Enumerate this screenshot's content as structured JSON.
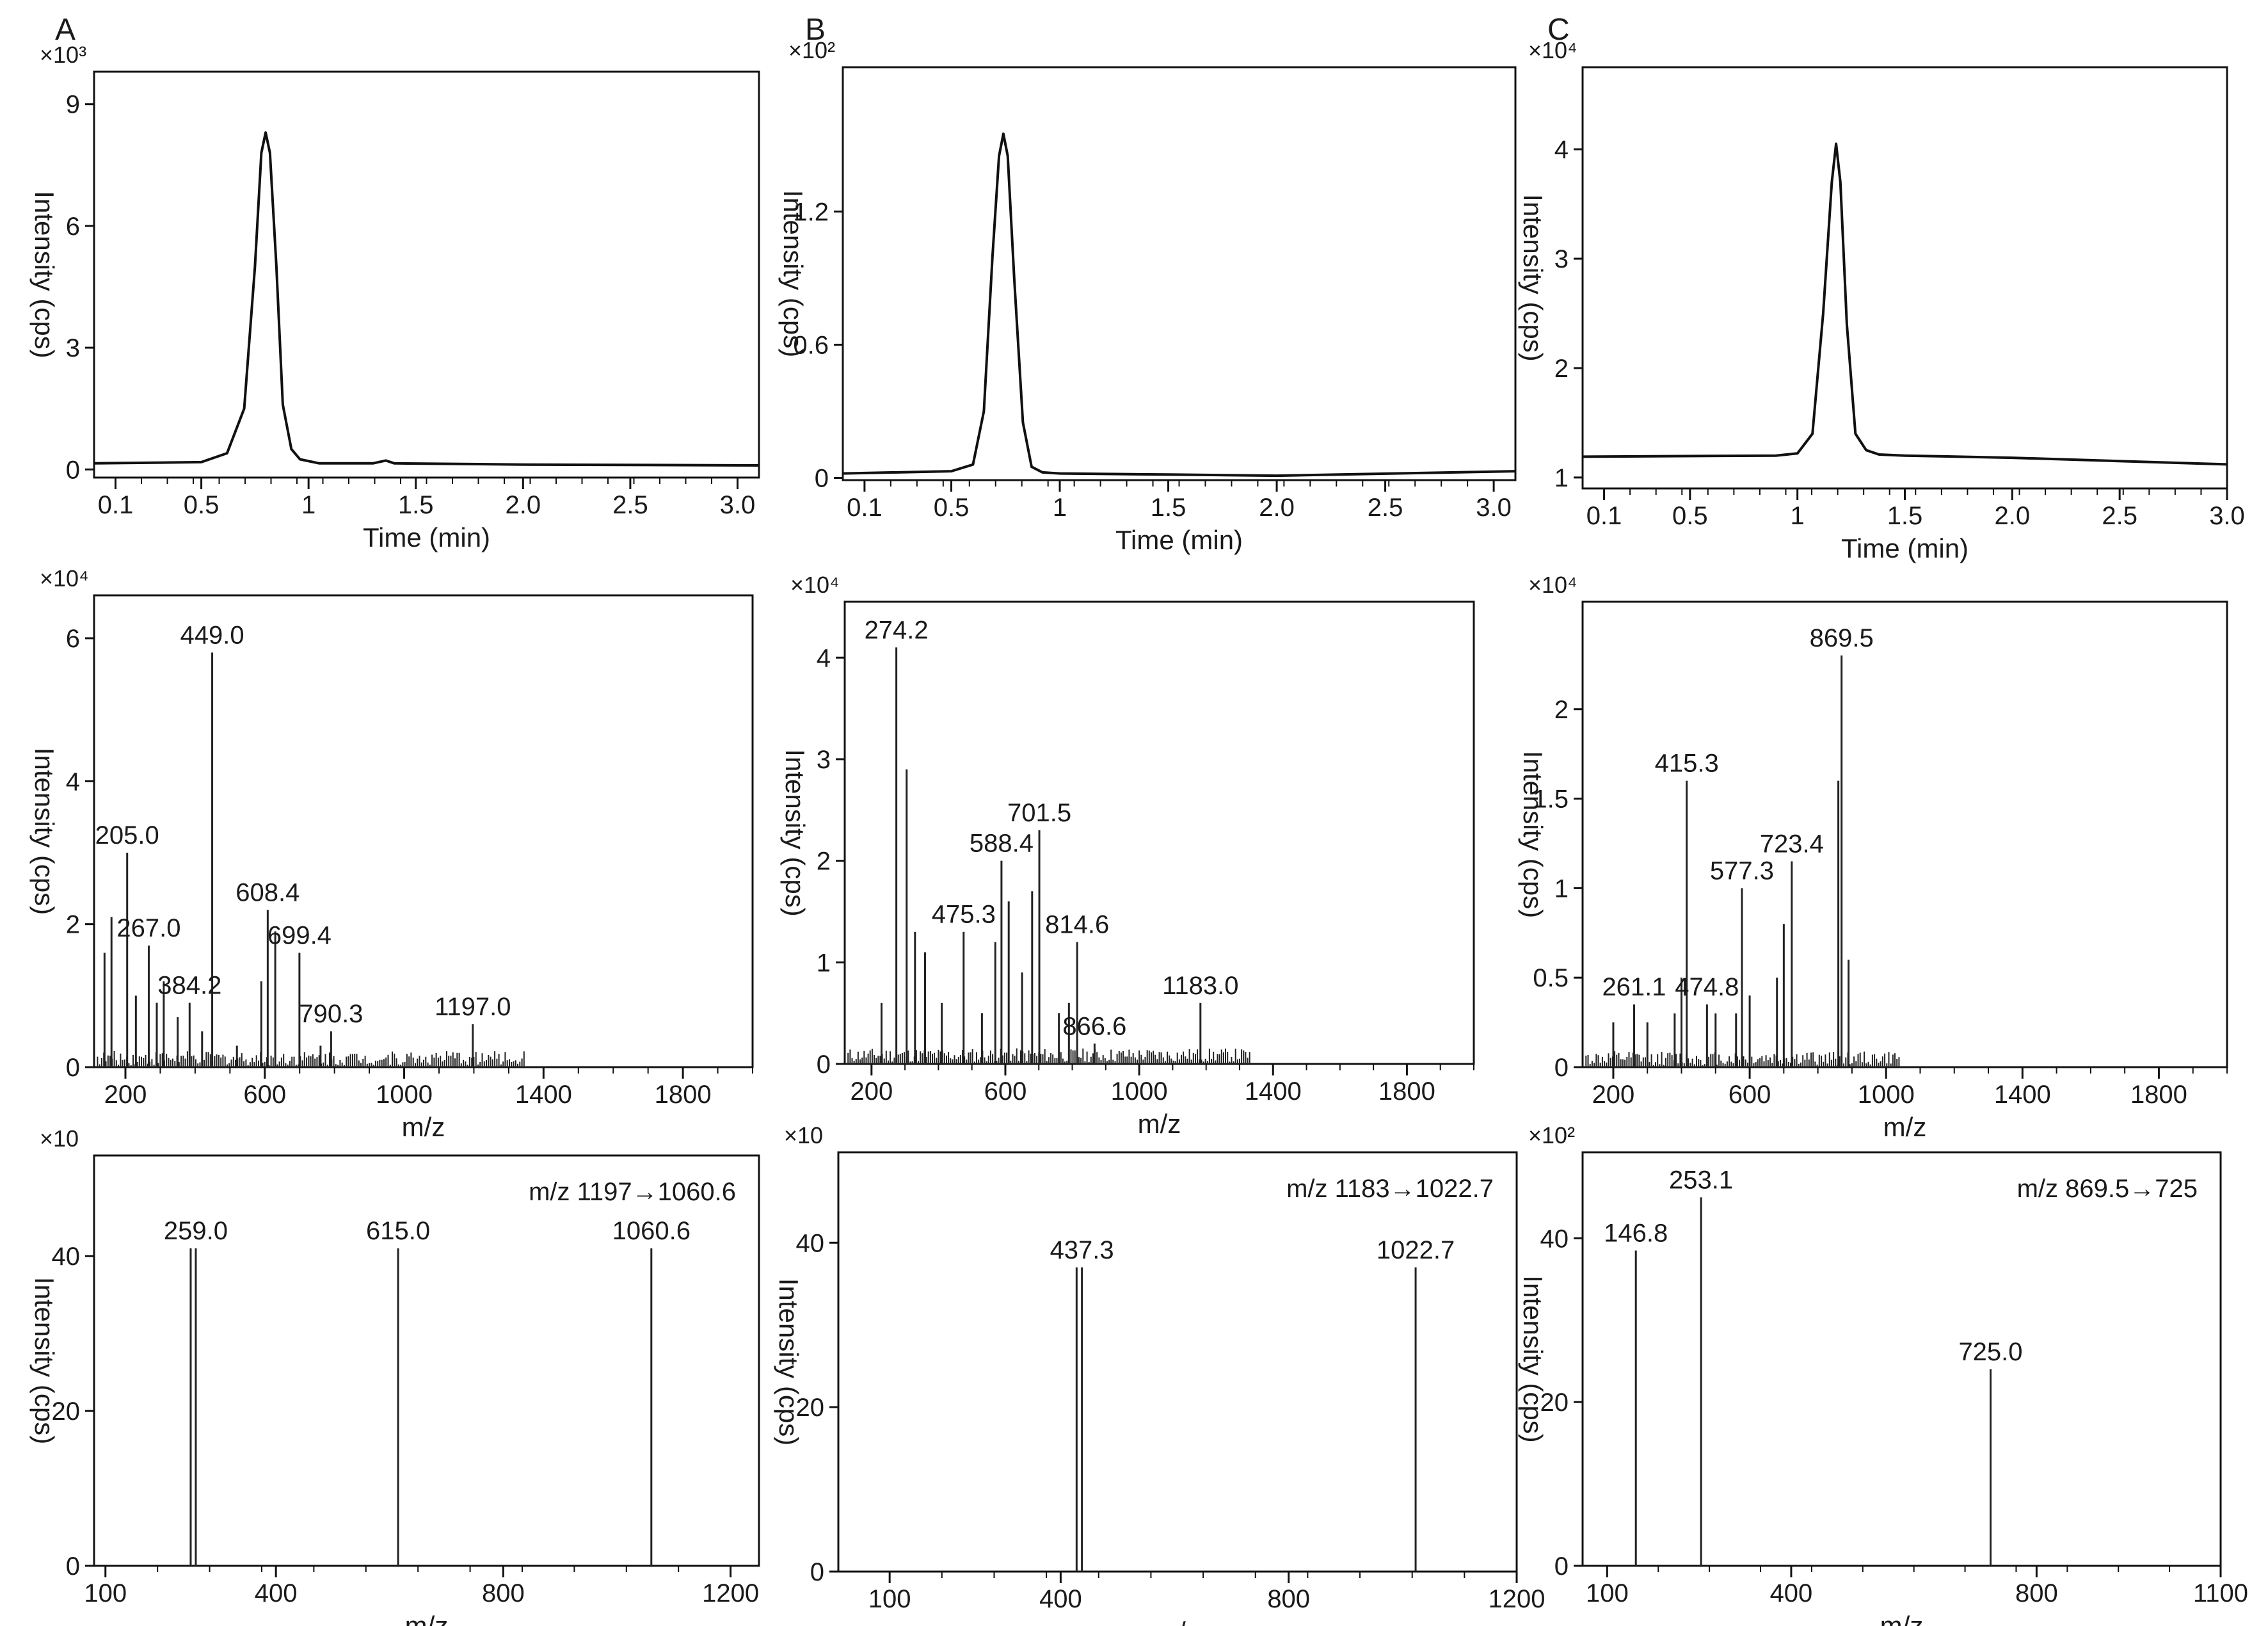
{
  "panel_letters": [
    "A",
    "B",
    "C"
  ],
  "chart_data": [
    {
      "id": "A-chromatogram",
      "type": "line",
      "panel": "A",
      "multiplier": "×10³",
      "xlabel": "Time (min)",
      "ylabel": "Intensity (cps)",
      "xlim": [
        0,
        3.1
      ],
      "ylim": [
        -0.2,
        9.8
      ],
      "x_ticks": [
        {
          "v": 0.1,
          "label": "0.1"
        },
        {
          "v": 0.5,
          "label": "0.5"
        },
        {
          "v": 1.0,
          "label": "1"
        },
        {
          "v": 1.5,
          "label": "1.5"
        },
        {
          "v": 2.0,
          "label": "2.0"
        },
        {
          "v": 2.5,
          "label": "2.5"
        },
        {
          "v": 3.0,
          "label": "3.0"
        }
      ],
      "y_ticks": [
        {
          "v": 0,
          "label": "0"
        },
        {
          "v": 3,
          "label": "3"
        },
        {
          "v": 6,
          "label": "6"
        },
        {
          "v": 9,
          "label": "9"
        }
      ],
      "series": [
        {
          "x": [
            0,
            0.5,
            0.62,
            0.7,
            0.75,
            0.78,
            0.8,
            0.82,
            0.85,
            0.88,
            0.92,
            0.96,
            1.05,
            1.3,
            1.36,
            1.4,
            2.0,
            3.1
          ],
          "y": [
            0.15,
            0.18,
            0.4,
            1.5,
            5.0,
            7.8,
            8.3,
            7.8,
            5.0,
            1.6,
            0.5,
            0.25,
            0.15,
            0.15,
            0.22,
            0.15,
            0.12,
            0.1
          ]
        }
      ]
    },
    {
      "id": "B-chromatogram",
      "type": "line",
      "panel": "B",
      "multiplier": "×10²",
      "xlabel": "Time (min)",
      "ylabel": "Intensity (cps)",
      "xlim": [
        0,
        3.1
      ],
      "ylim": [
        -0.01,
        1.85
      ],
      "x_ticks": [
        {
          "v": 0.1,
          "label": "0.1"
        },
        {
          "v": 0.5,
          "label": "0.5"
        },
        {
          "v": 1.0,
          "label": "1"
        },
        {
          "v": 1.5,
          "label": "1.5"
        },
        {
          "v": 2.0,
          "label": "2.0"
        },
        {
          "v": 2.5,
          "label": "2.5"
        },
        {
          "v": 3.0,
          "label": "3.0"
        }
      ],
      "y_ticks": [
        {
          "v": 0,
          "label": "0"
        },
        {
          "v": 0.6,
          "label": "0.6"
        },
        {
          "v": 1.2,
          "label": "1.2"
        }
      ],
      "series": [
        {
          "x": [
            0,
            0.5,
            0.6,
            0.65,
            0.69,
            0.72,
            0.74,
            0.76,
            0.79,
            0.83,
            0.87,
            0.92,
            1.0,
            1.5,
            2.0,
            3.1
          ],
          "y": [
            0.02,
            0.03,
            0.06,
            0.3,
            1.0,
            1.45,
            1.55,
            1.45,
            0.9,
            0.25,
            0.05,
            0.025,
            0.02,
            0.015,
            0.01,
            0.03
          ]
        }
      ]
    },
    {
      "id": "C-chromatogram",
      "type": "line",
      "panel": "C",
      "multiplier": "×10⁴",
      "xlabel": "Time (min)",
      "ylabel": "Intensity (cps)",
      "xlim": [
        0,
        3.0
      ],
      "ylim": [
        0.9,
        4.75
      ],
      "x_ticks": [
        {
          "v": 0.1,
          "label": "0.1"
        },
        {
          "v": 0.5,
          "label": "0.5"
        },
        {
          "v": 1.0,
          "label": "1"
        },
        {
          "v": 1.5,
          "label": "1.5"
        },
        {
          "v": 2.0,
          "label": "2.0"
        },
        {
          "v": 2.5,
          "label": "2.5"
        },
        {
          "v": 3.0,
          "label": "3.0"
        }
      ],
      "y_ticks": [
        {
          "v": 1,
          "label": "1"
        },
        {
          "v": 2,
          "label": "2"
        },
        {
          "v": 3,
          "label": "3"
        },
        {
          "v": 4,
          "label": "4"
        }
      ],
      "series": [
        {
          "x": [
            0,
            0.9,
            1.0,
            1.07,
            1.12,
            1.16,
            1.18,
            1.2,
            1.23,
            1.27,
            1.32,
            1.38,
            1.5,
            2.0,
            3.0
          ],
          "y": [
            1.19,
            1.2,
            1.22,
            1.4,
            2.5,
            3.7,
            4.05,
            3.7,
            2.4,
            1.4,
            1.25,
            1.21,
            1.2,
            1.18,
            1.12
          ]
        }
      ]
    },
    {
      "id": "A-ms",
      "type": "bar",
      "panel": "A",
      "multiplier": "×10⁴",
      "xlabel": "m/z",
      "ylabel": "Intensity (cps)",
      "xlim": [
        110,
        2000
      ],
      "ylim": [
        0,
        6.6
      ],
      "x_ticks": [
        {
          "v": 200,
          "label": "200"
        },
        {
          "v": 600,
          "label": "600"
        },
        {
          "v": 1000,
          "label": "1000"
        },
        {
          "v": 1400,
          "label": "1400"
        },
        {
          "v": 1800,
          "label": "1800"
        }
      ],
      "y_ticks": [
        {
          "v": 0,
          "label": "0"
        },
        {
          "v": 2,
          "label": "2"
        },
        {
          "v": 4,
          "label": "4"
        },
        {
          "v": 6,
          "label": "6"
        }
      ],
      "peaks": [
        [
          140,
          1.6
        ],
        [
          160,
          2.1
        ],
        [
          205,
          3.0
        ],
        [
          230,
          1.0
        ],
        [
          267,
          1.7
        ],
        [
          290,
          0.9
        ],
        [
          310,
          1.2
        ],
        [
          350,
          0.7
        ],
        [
          384.2,
          0.9
        ],
        [
          420,
          0.5
        ],
        [
          449,
          5.8
        ],
        [
          520,
          0.3
        ],
        [
          590,
          1.2
        ],
        [
          608.4,
          2.2
        ],
        [
          630,
          1.9
        ],
        [
          699.4,
          1.6
        ],
        [
          760,
          0.3
        ],
        [
          790.3,
          0.5
        ],
        [
          1197,
          0.6
        ]
      ],
      "labels": [
        {
          "text": "449.0",
          "x": 449,
          "y": 5.8
        },
        {
          "text": "205.0",
          "x": 205,
          "y": 3.0
        },
        {
          "text": "267.0",
          "x": 267,
          "y": 1.7
        },
        {
          "text": "384.2",
          "x": 384.2,
          "y": 0.9
        },
        {
          "text": "608.4",
          "x": 608.4,
          "y": 2.2
        },
        {
          "text": "699.4",
          "x": 699.4,
          "y": 1.6
        },
        {
          "text": "790.3",
          "x": 790.3,
          "y": 0.5
        },
        {
          "text": "1197.0",
          "x": 1197,
          "y": 0.6
        }
      ]
    },
    {
      "id": "B-ms",
      "type": "bar",
      "panel": "B",
      "multiplier": "×10⁴",
      "xlabel": "m/z",
      "ylabel": "Intensity (cps)",
      "xlim": [
        120,
        2000
      ],
      "ylim": [
        0,
        4.55
      ],
      "x_ticks": [
        {
          "v": 200,
          "label": "200"
        },
        {
          "v": 600,
          "label": "600"
        },
        {
          "v": 1000,
          "label": "1000"
        },
        {
          "v": 1400,
          "label": "1400"
        },
        {
          "v": 1800,
          "label": "1800"
        }
      ],
      "y_ticks": [
        {
          "v": 0,
          "label": "0"
        },
        {
          "v": 1,
          "label": "1"
        },
        {
          "v": 2,
          "label": "2"
        },
        {
          "v": 3,
          "label": "3"
        },
        {
          "v": 4,
          "label": "4"
        }
      ],
      "peaks": [
        [
          230,
          0.6
        ],
        [
          274.2,
          4.1
        ],
        [
          305,
          2.9
        ],
        [
          330,
          1.3
        ],
        [
          360,
          1.1
        ],
        [
          410,
          0.6
        ],
        [
          475.3,
          1.3
        ],
        [
          530,
          0.5
        ],
        [
          570,
          1.2
        ],
        [
          588.4,
          2.0
        ],
        [
          610,
          1.6
        ],
        [
          650,
          0.9
        ],
        [
          680,
          1.7
        ],
        [
          701.5,
          2.3
        ],
        [
          760,
          0.5
        ],
        [
          790,
          0.6
        ],
        [
          814.6,
          1.2
        ],
        [
          866.6,
          0.2
        ],
        [
          1183,
          0.6
        ]
      ],
      "labels": [
        {
          "text": "274.2",
          "x": 274.2,
          "y": 4.1
        },
        {
          "text": "701.5",
          "x": 701.5,
          "y": 2.3
        },
        {
          "text": "588.4",
          "x": 588.4,
          "y": 2.0
        },
        {
          "text": "475.3",
          "x": 475.3,
          "y": 1.3
        },
        {
          "text": "814.6",
          "x": 814.6,
          "y": 1.2
        },
        {
          "text": "866.6",
          "x": 866.6,
          "y": 0.2
        },
        {
          "text": "1183.0",
          "x": 1183,
          "y": 0.6
        }
      ]
    },
    {
      "id": "C-ms",
      "type": "bar",
      "panel": "C",
      "multiplier": "×10⁴",
      "xlabel": "m/z",
      "ylabel": "Intensity (cps)",
      "xlim": [
        110,
        2000
      ],
      "ylim": [
        0,
        2.6
      ],
      "x_ticks": [
        {
          "v": 200,
          "label": "200"
        },
        {
          "v": 600,
          "label": "600"
        },
        {
          "v": 1000,
          "label": "1000"
        },
        {
          "v": 1400,
          "label": "1400"
        },
        {
          "v": 1800,
          "label": "1800"
        }
      ],
      "y_ticks": [
        {
          "v": 0,
          "label": "0"
        },
        {
          "v": 0.5,
          "label": "0.5"
        },
        {
          "v": 1,
          "label": "1"
        },
        {
          "v": 1.5,
          "label": "1.5"
        },
        {
          "v": 2,
          "label": "2"
        }
      ],
      "peaks": [
        [
          200,
          0.25
        ],
        [
          261.1,
          0.35
        ],
        [
          300,
          0.25
        ],
        [
          380,
          0.3
        ],
        [
          400,
          0.5
        ],
        [
          415.3,
          1.6
        ],
        [
          474.8,
          0.35
        ],
        [
          500,
          0.3
        ],
        [
          560,
          0.3
        ],
        [
          577.3,
          1.0
        ],
        [
          600,
          0.4
        ],
        [
          680,
          0.5
        ],
        [
          700,
          0.8
        ],
        [
          723.4,
          1.15
        ],
        [
          860,
          1.6
        ],
        [
          869.5,
          2.3
        ],
        [
          890,
          0.6
        ]
      ],
      "labels": [
        {
          "text": "869.5",
          "x": 869.5,
          "y": 2.3
        },
        {
          "text": "415.3",
          "x": 415.3,
          "y": 1.6
        },
        {
          "text": "723.4",
          "x": 723.4,
          "y": 1.15
        },
        {
          "text": "577.3",
          "x": 577.3,
          "y": 1.0
        },
        {
          "text": "261.1",
          "x": 261.1,
          "y": 0.35
        },
        {
          "text": "474.8",
          "x": 474.8,
          "y": 0.35
        }
      ]
    },
    {
      "id": "A-msms",
      "type": "bar",
      "panel": "A",
      "multiplier": "×10",
      "xlabel": "m/z",
      "ylabel": "Intensity (cps)",
      "transition": "m/z 1197→1060.6",
      "xlim": [
        80,
        1250
      ],
      "ylim": [
        0,
        53
      ],
      "x_ticks": [
        {
          "v": 100,
          "label": "100"
        },
        {
          "v": 400,
          "label": "400"
        },
        {
          "v": 800,
          "label": "800"
        },
        {
          "v": 1200,
          "label": "1200"
        }
      ],
      "y_ticks": [
        {
          "v": 0,
          "label": "0"
        },
        {
          "v": 20,
          "label": "20"
        },
        {
          "v": 40,
          "label": "40"
        }
      ],
      "peaks": [
        [
          250,
          41
        ],
        [
          259,
          41
        ],
        [
          615,
          41
        ],
        [
          1060.6,
          41
        ]
      ],
      "labels": [
        {
          "text": "259.0",
          "x": 259,
          "y": 41
        },
        {
          "text": "615.0",
          "x": 615,
          "y": 41
        },
        {
          "text": "1060.6",
          "x": 1060.6,
          "y": 41
        }
      ]
    },
    {
      "id": "B-msms",
      "type": "bar",
      "panel": "B",
      "multiplier": "×10",
      "xlabel": "m/z",
      "ylabel": "Intensity (cps)",
      "transition": "m/z 1183→1022.7",
      "xlim": [
        10,
        1200
      ],
      "ylim": [
        0,
        51
      ],
      "x_ticks": [
        {
          "v": 100,
          "label": "100"
        },
        {
          "v": 400,
          "label": "400"
        },
        {
          "v": 800,
          "label": "800"
        },
        {
          "v": 1200,
          "label": "1200"
        }
      ],
      "y_ticks": [
        {
          "v": 0,
          "label": "0"
        },
        {
          "v": 20,
          "label": "20"
        },
        {
          "v": 40,
          "label": "40"
        }
      ],
      "peaks": [
        [
          428,
          37
        ],
        [
          437.3,
          37
        ],
        [
          1022.7,
          37
        ]
      ],
      "labels": [
        {
          "text": "437.3",
          "x": 437.3,
          "y": 37
        },
        {
          "text": "1022.7",
          "x": 1022.7,
          "y": 37
        }
      ]
    },
    {
      "id": "C-msms",
      "type": "bar",
      "panel": "C",
      "multiplier": "×10²",
      "xlabel": "m/z",
      "ylabel": "Intensity (cps)",
      "transition": "m/z 869.5→725",
      "xlim": [
        60,
        1100
      ],
      "ylim": [
        0,
        50.5
      ],
      "x_ticks": [
        {
          "v": 100,
          "label": "100"
        },
        {
          "v": 400,
          "label": "400"
        },
        {
          "v": 800,
          "label": "800"
        },
        {
          "v": 1100,
          "label": "1100"
        }
      ],
      "y_ticks": [
        {
          "v": 0,
          "label": "0"
        },
        {
          "v": 20,
          "label": "20"
        },
        {
          "v": 40,
          "label": "40"
        }
      ],
      "peaks": [
        [
          146.8,
          38.5
        ],
        [
          253.1,
          45
        ],
        [
          725,
          24
        ]
      ],
      "labels": [
        {
          "text": "253.1",
          "x": 253.1,
          "y": 45
        },
        {
          "text": "146.8",
          "x": 146.8,
          "y": 38.5
        },
        {
          "text": "725.0",
          "x": 725,
          "y": 24
        }
      ]
    }
  ]
}
